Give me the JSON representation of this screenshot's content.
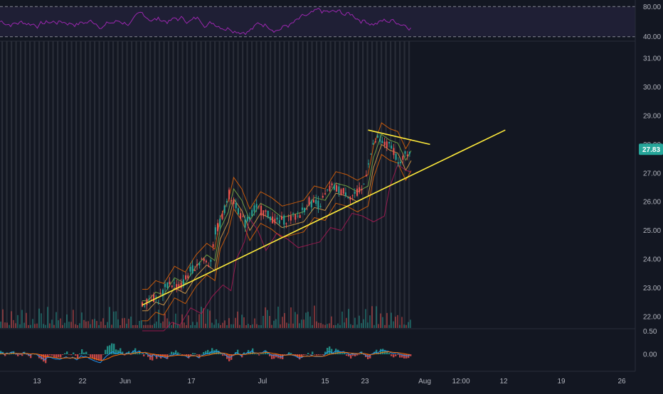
{
  "colors": {
    "background": "#131722",
    "rsi_line": "#9c27b0",
    "rsi_band": "#7e57c2",
    "trendline": "#ffeb3b",
    "price_label": "#26a69a",
    "candle_up": "#26a69a",
    "candle_down": "#ef5350",
    "macd_line": "#2196f3",
    "signal_line": "#ff6d00",
    "session_shade": "#787b86"
  },
  "chart_data": [
    {
      "type": "line",
      "panel": "rsi",
      "y_ticks": [
        "80.00",
        "40.00"
      ],
      "y_tick_values": [
        80,
        40
      ],
      "ylim": [
        35,
        85
      ],
      "band": [
        40,
        80
      ]
    },
    {
      "type": "candlestick",
      "panel": "price",
      "x_ticks": [
        "13",
        "22",
        "Jun",
        "17",
        "Jul",
        "15",
        "23",
        "Aug",
        "12:00",
        "12",
        "19",
        "26"
      ],
      "y_ticks": [
        "31.00",
        "30.00",
        "29.00",
        "28.00",
        "27.00",
        "26.00",
        "25.00",
        "24.00",
        "23.00",
        "22.00"
      ],
      "y_tick_values": [
        31,
        30,
        29,
        28,
        27,
        26,
        25,
        24,
        23,
        22
      ],
      "ylim": [
        21.6,
        31.6
      ],
      "last_price": "27.83",
      "last_price_value": 27.83,
      "price_path": [
        [
          0,
          22.4
        ],
        [
          0.03,
          22.7
        ],
        [
          0.06,
          22.6
        ],
        [
          0.1,
          23.2
        ],
        [
          0.14,
          23.0
        ],
        [
          0.18,
          23.6
        ],
        [
          0.22,
          24.0
        ],
        [
          0.25,
          23.8
        ],
        [
          0.27,
          24.9
        ],
        [
          0.3,
          25.5
        ],
        [
          0.32,
          26.3
        ],
        [
          0.35,
          25.9
        ],
        [
          0.38,
          25.2
        ],
        [
          0.42,
          25.8
        ],
        [
          0.46,
          25.6
        ],
        [
          0.5,
          25.3
        ],
        [
          0.54,
          25.4
        ],
        [
          0.58,
          25.5
        ],
        [
          0.62,
          26.0
        ],
        [
          0.66,
          25.9
        ],
        [
          0.7,
          26.5
        ],
        [
          0.74,
          26.4
        ],
        [
          0.78,
          26.2
        ],
        [
          0.82,
          26.4
        ],
        [
          0.84,
          27.4
        ],
        [
          0.87,
          28.2
        ],
        [
          0.9,
          28.0
        ],
        [
          0.93,
          27.9
        ],
        [
          0.96,
          27.3
        ],
        [
          0.99,
          27.8
        ],
        [
          1.0,
          27.83
        ]
      ],
      "trendlines": [
        {
          "start": [
            0.0,
            22.4
          ],
          "end": [
            1.35,
            28.5
          ]
        },
        {
          "start": [
            0.84,
            28.5
          ],
          "end": [
            1.07,
            28.0
          ]
        }
      ]
    },
    {
      "type": "line",
      "panel": "macd",
      "y_ticks": [
        "0.50",
        "0.00"
      ],
      "y_tick_values": [
        0.5,
        0.0
      ],
      "ylim": [
        -0.35,
        0.55
      ]
    }
  ]
}
